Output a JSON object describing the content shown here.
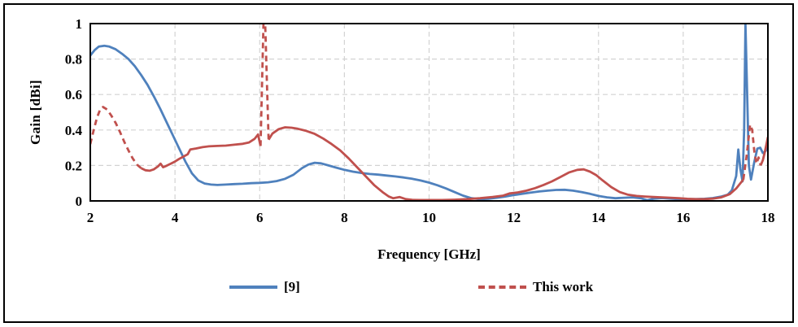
{
  "figure": {
    "outer_border_color": "#000000",
    "background_color": "#ffffff"
  },
  "chart_data": {
    "type": "line",
    "title": "",
    "xlabel": "Frequency [GHz]",
    "ylabel": "Gain [dBi]",
    "xlim": [
      2,
      18
    ],
    "ylim": [
      0,
      1
    ],
    "x_ticks": [
      2,
      4,
      6,
      8,
      10,
      12,
      14,
      16,
      18
    ],
    "x_tick_labels": [
      "2",
      "4",
      "6",
      "8",
      "10",
      "12",
      "14",
      "16",
      "18"
    ],
    "y_ticks": [
      0,
      0.2,
      0.4,
      0.6,
      0.8,
      1
    ],
    "y_tick_labels": [
      "0",
      "0.2",
      "0.4",
      "0.6",
      "0.8",
      "1"
    ],
    "grid": "dashed",
    "grid_color": "#d3d3d3",
    "plot_border_color": "#000000",
    "legend_position": "bottom",
    "series": [
      {
        "name": "[9]",
        "color": "#4F81BD",
        "style": "solid",
        "points": [
          [
            2.0,
            0.82
          ],
          [
            2.1,
            0.85
          ],
          [
            2.2,
            0.87
          ],
          [
            2.33,
            0.875
          ],
          [
            2.45,
            0.87
          ],
          [
            2.6,
            0.855
          ],
          [
            2.75,
            0.83
          ],
          [
            2.9,
            0.8
          ],
          [
            3.05,
            0.76
          ],
          [
            3.2,
            0.71
          ],
          [
            3.35,
            0.655
          ],
          [
            3.5,
            0.59
          ],
          [
            3.65,
            0.52
          ],
          [
            3.8,
            0.445
          ],
          [
            3.95,
            0.37
          ],
          [
            4.1,
            0.295
          ],
          [
            4.25,
            0.22
          ],
          [
            4.4,
            0.155
          ],
          [
            4.55,
            0.115
          ],
          [
            4.7,
            0.098
          ],
          [
            4.85,
            0.092
          ],
          [
            5.0,
            0.09
          ],
          [
            5.2,
            0.092
          ],
          [
            5.4,
            0.095
          ],
          [
            5.6,
            0.097
          ],
          [
            5.8,
            0.1
          ],
          [
            6.0,
            0.102
          ],
          [
            6.2,
            0.105
          ],
          [
            6.4,
            0.112
          ],
          [
            6.6,
            0.125
          ],
          [
            6.8,
            0.148
          ],
          [
            7.0,
            0.185
          ],
          [
            7.15,
            0.205
          ],
          [
            7.3,
            0.215
          ],
          [
            7.45,
            0.212
          ],
          [
            7.6,
            0.202
          ],
          [
            7.8,
            0.188
          ],
          [
            8.0,
            0.175
          ],
          [
            8.2,
            0.165
          ],
          [
            8.4,
            0.158
          ],
          [
            8.6,
            0.152
          ],
          [
            8.8,
            0.148
          ],
          [
            9.0,
            0.143
          ],
          [
            9.2,
            0.138
          ],
          [
            9.4,
            0.132
          ],
          [
            9.6,
            0.125
          ],
          [
            9.8,
            0.115
          ],
          [
            10.0,
            0.103
          ],
          [
            10.2,
            0.088
          ],
          [
            10.4,
            0.07
          ],
          [
            10.6,
            0.05
          ],
          [
            10.8,
            0.03
          ],
          [
            11.0,
            0.015
          ],
          [
            11.2,
            0.01
          ],
          [
            11.4,
            0.012
          ],
          [
            11.6,
            0.018
          ],
          [
            11.8,
            0.025
          ],
          [
            12.0,
            0.033
          ],
          [
            12.2,
            0.04
          ],
          [
            12.4,
            0.047
          ],
          [
            12.6,
            0.053
          ],
          [
            12.8,
            0.058
          ],
          [
            13.0,
            0.062
          ],
          [
            13.2,
            0.063
          ],
          [
            13.4,
            0.058
          ],
          [
            13.6,
            0.05
          ],
          [
            13.8,
            0.04
          ],
          [
            14.0,
            0.028
          ],
          [
            14.2,
            0.02
          ],
          [
            14.4,
            0.015
          ],
          [
            14.6,
            0.018
          ],
          [
            14.8,
            0.02
          ],
          [
            15.0,
            0.015
          ],
          [
            15.15,
            0.004
          ],
          [
            15.3,
            0.012
          ],
          [
            15.5,
            0.016
          ],
          [
            15.7,
            0.013
          ],
          [
            15.9,
            0.01
          ],
          [
            16.1,
            0.01
          ],
          [
            16.3,
            0.01
          ],
          [
            16.5,
            0.012
          ],
          [
            16.7,
            0.016
          ],
          [
            16.9,
            0.025
          ],
          [
            17.05,
            0.035
          ],
          [
            17.15,
            0.06
          ],
          [
            17.25,
            0.14
          ],
          [
            17.3,
            0.29
          ],
          [
            17.35,
            0.18
          ],
          [
            17.4,
            0.11
          ],
          [
            17.44,
            0.4
          ],
          [
            17.47,
            1.0
          ],
          [
            17.5,
            0.7
          ],
          [
            17.55,
            0.2
          ],
          [
            17.6,
            0.12
          ],
          [
            17.68,
            0.22
          ],
          [
            17.75,
            0.295
          ],
          [
            17.82,
            0.3
          ],
          [
            17.88,
            0.27
          ],
          [
            17.94,
            0.28
          ],
          [
            18.0,
            0.3
          ]
        ]
      },
      {
        "name": "This work",
        "color": "#C0504D",
        "style": "dashed",
        "segments": [
          {
            "dashed": true,
            "points": [
              [
                2.0,
                0.32
              ],
              [
                2.08,
                0.4
              ],
              [
                2.16,
                0.47
              ],
              [
                2.24,
                0.52
              ],
              [
                2.3,
                0.53
              ],
              [
                2.4,
                0.515
              ],
              [
                2.5,
                0.48
              ],
              [
                2.6,
                0.44
              ],
              [
                2.7,
                0.39
              ],
              [
                2.8,
                0.335
              ],
              [
                2.9,
                0.285
              ],
              [
                3.0,
                0.24
              ],
              [
                3.1,
                0.205
              ],
              [
                3.2,
                0.185
              ]
            ]
          },
          {
            "dashed": false,
            "points": [
              [
                3.2,
                0.185
              ],
              [
                3.3,
                0.173
              ],
              [
                3.4,
                0.17
              ],
              [
                3.5,
                0.178
              ],
              [
                3.6,
                0.195
              ],
              [
                3.66,
                0.21
              ],
              [
                3.72,
                0.19
              ],
              [
                3.8,
                0.198
              ],
              [
                3.9,
                0.21
              ],
              [
                4.0,
                0.222
              ],
              [
                4.1,
                0.237
              ],
              [
                4.2,
                0.25
              ],
              [
                4.3,
                0.263
              ],
              [
                4.36,
                0.29
              ],
              [
                4.5,
                0.296
              ],
              [
                4.65,
                0.303
              ],
              [
                4.8,
                0.308
              ],
              [
                5.0,
                0.31
              ],
              [
                5.2,
                0.312
              ],
              [
                5.4,
                0.317
              ],
              [
                5.6,
                0.322
              ],
              [
                5.75,
                0.33
              ],
              [
                5.88,
                0.35
              ],
              [
                5.96,
                0.375
              ],
              [
                6.02,
                0.31
              ]
            ]
          },
          {
            "dashed": true,
            "points": [
              [
                6.02,
                0.31
              ],
              [
                6.09,
                1.0
              ],
              [
                6.13,
                1.0
              ],
              [
                6.21,
                0.345
              ]
            ]
          },
          {
            "dashed": false,
            "points": [
              [
                6.21,
                0.345
              ],
              [
                6.3,
                0.38
              ],
              [
                6.45,
                0.405
              ],
              [
                6.6,
                0.415
              ],
              [
                6.75,
                0.413
              ],
              [
                6.9,
                0.407
              ],
              [
                7.1,
                0.395
              ],
              [
                7.3,
                0.378
              ],
              [
                7.5,
                0.352
              ],
              [
                7.7,
                0.32
              ],
              [
                7.9,
                0.285
              ],
              [
                8.1,
                0.24
              ],
              [
                8.3,
                0.19
              ],
              [
                8.5,
                0.14
              ],
              [
                8.7,
                0.09
              ],
              [
                8.9,
                0.05
              ],
              [
                9.05,
                0.025
              ],
              [
                9.15,
                0.015
              ],
              [
                9.3,
                0.022
              ],
              [
                9.45,
                0.01
              ],
              [
                9.6,
                0.006
              ],
              [
                9.8,
                0.005
              ],
              [
                10.0,
                0.005
              ],
              [
                10.3,
                0.005
              ],
              [
                10.6,
                0.007
              ],
              [
                10.9,
                0.01
              ],
              [
                11.2,
                0.015
              ],
              [
                11.5,
                0.022
              ],
              [
                11.75,
                0.03
              ],
              [
                11.9,
                0.042
              ],
              [
                12.1,
                0.048
              ],
              [
                12.3,
                0.058
              ],
              [
                12.5,
                0.072
              ],
              [
                12.7,
                0.09
              ],
              [
                12.9,
                0.11
              ],
              [
                13.1,
                0.135
              ],
              [
                13.3,
                0.16
              ],
              [
                13.5,
                0.175
              ],
              [
                13.65,
                0.178
              ],
              [
                13.8,
                0.165
              ],
              [
                13.95,
                0.145
              ],
              [
                14.1,
                0.115
              ],
              [
                14.3,
                0.078
              ],
              [
                14.5,
                0.05
              ],
              [
                14.7,
                0.035
              ],
              [
                14.9,
                0.028
              ],
              [
                15.1,
                0.025
              ],
              [
                15.3,
                0.022
              ],
              [
                15.5,
                0.02
              ],
              [
                15.7,
                0.018
              ],
              [
                15.9,
                0.015
              ],
              [
                16.1,
                0.012
              ],
              [
                16.3,
                0.01
              ],
              [
                16.5,
                0.01
              ],
              [
                16.7,
                0.013
              ],
              [
                16.9,
                0.02
              ],
              [
                17.1,
                0.038
              ],
              [
                17.25,
                0.07
              ],
              [
                17.42,
                0.12
              ]
            ]
          },
          {
            "dashed": true,
            "points": [
              [
                17.42,
                0.12
              ],
              [
                17.5,
                0.26
              ],
              [
                17.58,
                0.43
              ],
              [
                17.63,
                0.4
              ],
              [
                17.68,
                0.28
              ],
              [
                17.73,
                0.21
              ],
              [
                17.78,
                0.245
              ],
              [
                17.83,
                0.2
              ]
            ]
          },
          {
            "dashed": false,
            "points": [
              [
                17.83,
                0.2
              ],
              [
                17.88,
                0.23
              ],
              [
                17.93,
                0.28
              ],
              [
                18.0,
                0.36
              ]
            ]
          }
        ]
      }
    ]
  }
}
